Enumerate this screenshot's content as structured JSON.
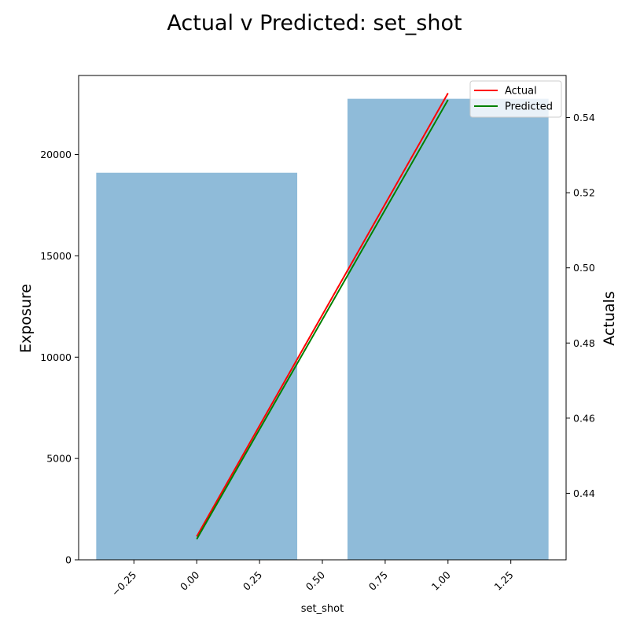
{
  "chart_data": {
    "type": "bar",
    "title": "Actual v Predicted: set_shot",
    "xlabel": "set_shot",
    "ylabel_left": "Exposure",
    "ylabel_right": "Actuals",
    "xlim": [
      -0.47,
      1.47
    ],
    "ylim_left": [
      0,
      23900
    ],
    "ylim_right": [
      0.4223,
      0.5512
    ],
    "x_ticks": [
      -0.25,
      0.0,
      0.25,
      0.5,
      0.75,
      1.0,
      1.25
    ],
    "x_tick_labels": [
      "−0.25",
      "0.00",
      "0.25",
      "0.50",
      "0.75",
      "1.00",
      "1.25"
    ],
    "y_left_ticks": [
      0,
      5000,
      10000,
      15000,
      20000
    ],
    "y_left_tick_labels": [
      "0",
      "5000",
      "10000",
      "15000",
      "20000"
    ],
    "y_right_ticks": [
      0.44,
      0.46,
      0.48,
      0.5,
      0.52,
      0.54
    ],
    "y_right_tick_labels": [
      "0.44",
      "0.46",
      "0.48",
      "0.50",
      "0.52",
      "0.54"
    ],
    "bars": {
      "x": [
        0,
        1
      ],
      "width": 0.8,
      "values": [
        19100,
        22750
      ],
      "color": "#1f77b4",
      "alpha": 0.5
    },
    "series": [
      {
        "name": "Actual",
        "x": [
          0,
          1
        ],
        "values": [
          0.4285,
          0.5465
        ],
        "color": "#ff0000"
      },
      {
        "name": "Predicted",
        "x": [
          0,
          1
        ],
        "values": [
          0.4278,
          0.5447
        ],
        "color": "#008000"
      }
    ],
    "legend_position": "top-right",
    "grid": false
  }
}
